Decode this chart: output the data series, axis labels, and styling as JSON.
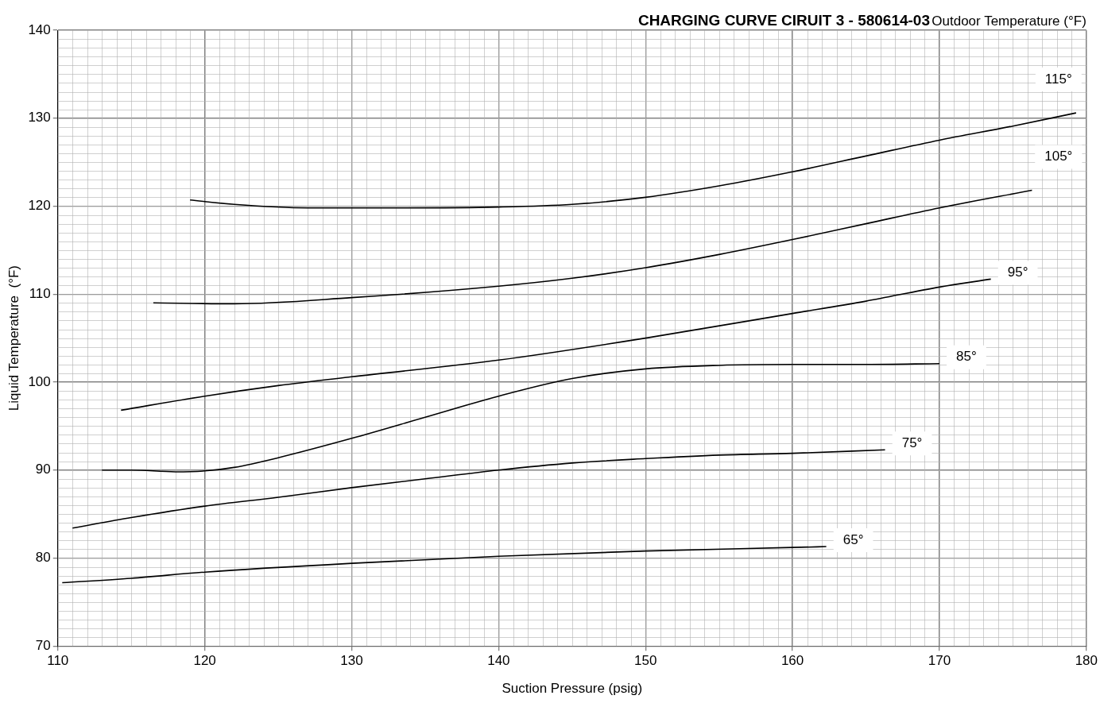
{
  "chart_data": {
    "type": "line",
    "title": "CHARGING CURVE CIRUIT 3 - 580614-03",
    "legend_title": "Outdoor Temperature (°F)",
    "xlabel": "Suction Pressure (psig)",
    "ylabel": "Liquid Temperature  (°F)",
    "xlim": [
      110,
      180
    ],
    "ylim": [
      70,
      140
    ],
    "xticks": [
      110,
      120,
      130,
      140,
      150,
      160,
      170,
      180
    ],
    "yticks": [
      70,
      80,
      90,
      100,
      110,
      120,
      130,
      140
    ],
    "grid": true,
    "marker": "none",
    "line_style": "solid",
    "series": [
      {
        "name": "115°",
        "color": "#000000",
        "x": [
          119,
          122,
          127,
          133,
          140,
          145,
          150,
          155,
          160,
          165,
          170,
          175,
          179.3
        ],
        "values": [
          120.7,
          120.2,
          119.8,
          119.8,
          119.9,
          120.2,
          121,
          122.3,
          123.9,
          125.7,
          127.5,
          129.1,
          130.6
        ]
      },
      {
        "name": "105°",
        "color": "#000000",
        "x": [
          116.5,
          122,
          130,
          140,
          145,
          150,
          155,
          160,
          165,
          170,
          176.3
        ],
        "values": [
          109,
          108.9,
          109.6,
          110.9,
          111.8,
          113,
          114.5,
          116.2,
          118,
          119.8,
          121.8
        ]
      },
      {
        "name": "95°",
        "color": "#000000",
        "x": [
          114.3,
          120,
          125,
          130,
          140,
          150,
          160,
          165,
          170,
          173.5
        ],
        "values": [
          96.8,
          98.4,
          99.6,
          100.6,
          102.5,
          105,
          107.8,
          109.2,
          110.8,
          111.7
        ]
      },
      {
        "name": "85°",
        "color": "#000000",
        "x": [
          113,
          115,
          118,
          120,
          122,
          125,
          130,
          135,
          140,
          145,
          150,
          155,
          160,
          165,
          170
        ],
        "values": [
          90,
          90,
          89.8,
          89.9,
          90.3,
          91.4,
          93.6,
          96,
          98.4,
          100.4,
          101.5,
          101.9,
          102,
          102,
          102.1
        ]
      },
      {
        "name": "75°",
        "color": "#000000",
        "x": [
          111,
          115,
          120,
          125,
          130,
          135,
          140,
          145,
          150,
          155,
          160,
          166.3
        ],
        "values": [
          83.4,
          84.6,
          85.9,
          86.9,
          88,
          89,
          90,
          90.8,
          91.3,
          91.7,
          91.9,
          92.3
        ]
      },
      {
        "name": "65°",
        "color": "#000000",
        "x": [
          110.3,
          115,
          120,
          130,
          140,
          150,
          160,
          162.3
        ],
        "values": [
          77.2,
          77.7,
          78.4,
          79.4,
          80.2,
          80.8,
          81.2,
          81.3
        ]
      }
    ]
  }
}
